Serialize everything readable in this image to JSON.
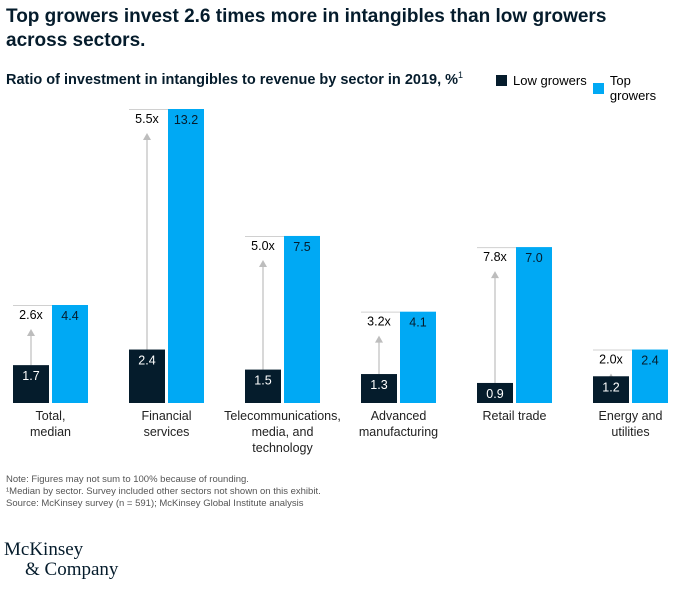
{
  "title": "Top growers invest 2.6 times more in intangibles than low growers across sectors.",
  "subtitle": "Ratio of investment in intangibles to revenue by sector in 2019, %",
  "subtitle_footnote": "1",
  "notes": [
    "Note: Figures may not sum to 100% because of rounding.",
    "¹Median by sector. Survey included other sectors not shown on this exhibit.",
    "Source: McKinsey survey (n = 591); McKinsey Global Institute analysis"
  ],
  "logo": [
    "McKinsey",
    "& Company"
  ],
  "chart_data": {
    "type": "bar",
    "categories": [
      [
        "Total,",
        "median"
      ],
      [
        "Financial",
        "services"
      ],
      [
        "Telecommunications,",
        "media, and",
        "technology"
      ],
      [
        "Advanced",
        "manufacturing"
      ],
      [
        "Retail trade"
      ],
      [
        "Energy and",
        "utilities"
      ]
    ],
    "series": [
      {
        "name": "Low growers",
        "color": "#051c2c",
        "values": [
          1.7,
          2.4,
          1.5,
          1.3,
          0.9,
          1.2
        ],
        "labels": [
          "1.7",
          "2.4",
          "1.5",
          "1.3",
          "0.9",
          "1.2"
        ]
      },
      {
        "name": "Top growers",
        "color": "#00a9f4",
        "values": [
          4.4,
          13.2,
          7.5,
          4.1,
          7.0,
          2.4
        ],
        "labels": [
          "4.4",
          "13.2",
          "7.5",
          "4.1",
          "7.0",
          "2.4"
        ]
      }
    ],
    "multipliers": [
      "2.6x",
      "5.5x",
      "5.0x",
      "3.2x",
      "7.8x",
      "2.0x"
    ],
    "ylim": [
      0,
      13.2
    ],
    "grid": false,
    "legend": "top-right"
  }
}
